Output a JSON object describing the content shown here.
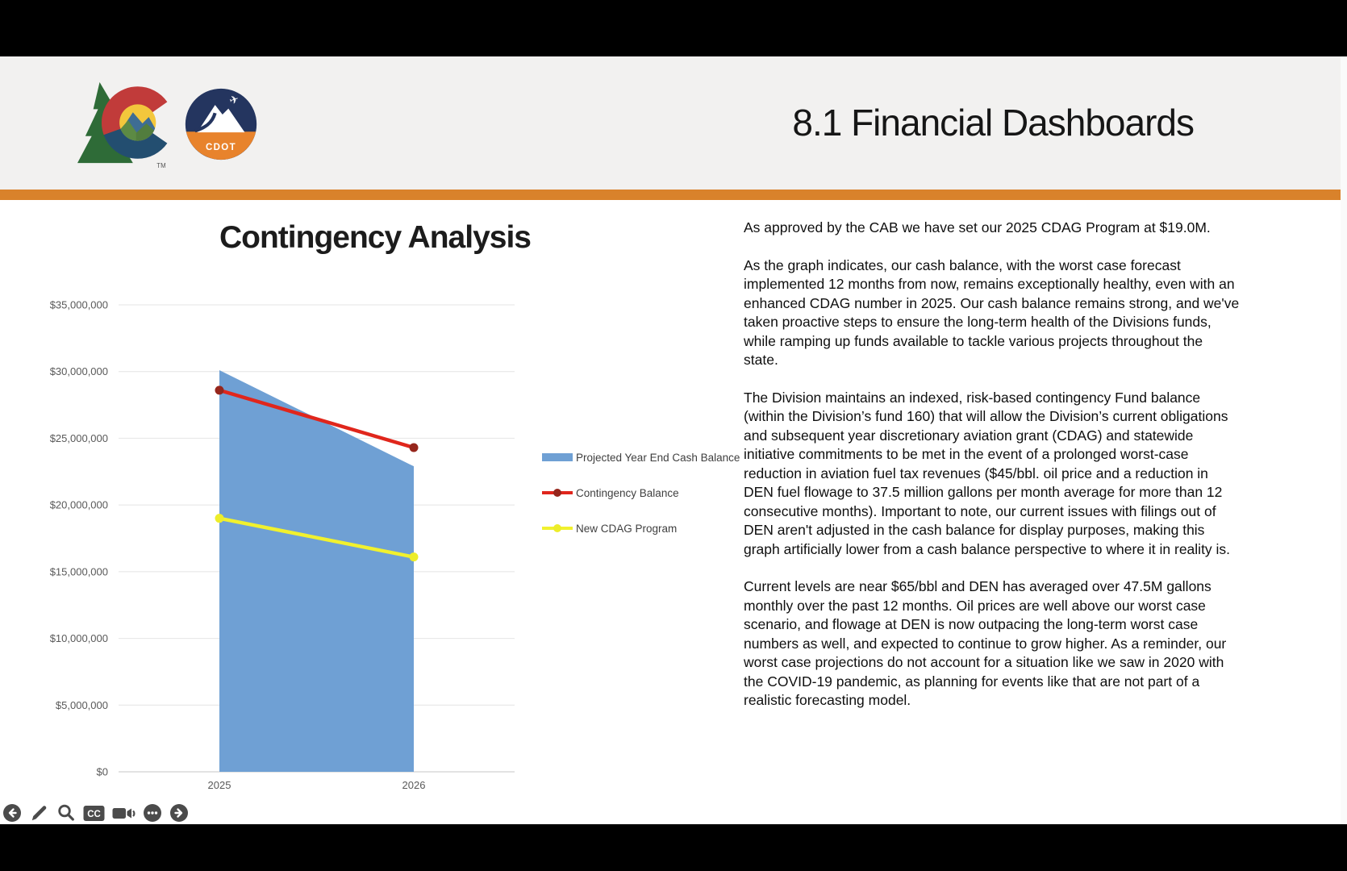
{
  "header": {
    "title": "8.1 Financial Dashboards",
    "cdot_logo_label": "CDOT",
    "trademark": "TM",
    "accent_color": "#D9822B"
  },
  "chart_data": {
    "type": "area",
    "title": "Contingency Analysis",
    "categories": [
      "2025",
      "2026"
    ],
    "series": [
      {
        "name": "Projected Year End Cash Balance",
        "type": "area",
        "color": "#6FA0D4",
        "values": [
          30100000,
          22900000
        ]
      },
      {
        "name": "Contingency Balance",
        "type": "line",
        "color": "#E0261C",
        "marker_color": "#96261C",
        "values": [
          28600000,
          24300000
        ]
      },
      {
        "name": "New CDAG Program",
        "type": "line",
        "color": "#F1F12E",
        "marker_color": "#EDED2A",
        "values": [
          19000000,
          16100000
        ]
      }
    ],
    "ylim": [
      0,
      35000000
    ],
    "ytick_step": 5000000,
    "ytick_labels": [
      "$0",
      "$5,000,000",
      "$10,000,000",
      "$15,000,000",
      "$20,000,000",
      "$25,000,000",
      "$30,000,000",
      "$35,000,000"
    ],
    "grid": true,
    "legend_position": "right-middle"
  },
  "narrative": {
    "paragraphs": [
      "As approved by the CAB we have set our 2025 CDAG Program at $19.0M.",
      "As the graph indicates, our cash balance, with the worst case forecast implemented 12 months from now, remains exceptionally healthy, even with an enhanced CDAG number in 2025. Our cash balance remains strong, and we've taken proactive steps to ensure the long-term health of the Divisions funds, while ramping up funds available to tackle various projects throughout the state.",
      "The Division maintains an indexed, risk-based contingency Fund balance (within the Division’s fund 160) that will allow the Division’s current obligations and subsequent year discretionary aviation grant (CDAG) and statewide initiative commitments to be met in the event of a prolonged worst-case reduction in aviation fuel tax revenues ($45/bbl. oil price and a reduction in DEN fuel flowage to 37.5 million gallons per month average for more than 12 consecutive months). Important to note, our current issues with filings out of DEN aren't adjusted in the cash balance for display purposes, making this graph artificially lower from a cash balance perspective to where it in reality is.",
      "Current levels are near $65/bbl and DEN has averaged over 47.5M gallons monthly over the past 12 months. Oil prices are well above our worst case scenario, and flowage at DEN is now outpacing the long-term worst case numbers as well, and expected to continue to grow higher. As a reminder, our worst case projections do not account for a situation like we saw in 2020 with the COVID-19 pandemic, as planning for events like that are not part of a realistic forecasting model."
    ]
  },
  "player": {
    "controls": [
      {
        "name": "previous",
        "glyph": "arrow-left-circle"
      },
      {
        "name": "draw",
        "glyph": "pencil"
      },
      {
        "name": "search",
        "glyph": "magnifier"
      },
      {
        "name": "captions",
        "glyph": "cc-badge",
        "label": "CC"
      },
      {
        "name": "camera",
        "glyph": "video-camera"
      },
      {
        "name": "more",
        "glyph": "ellipsis-circle"
      },
      {
        "name": "next",
        "glyph": "arrow-right-circle"
      }
    ]
  }
}
